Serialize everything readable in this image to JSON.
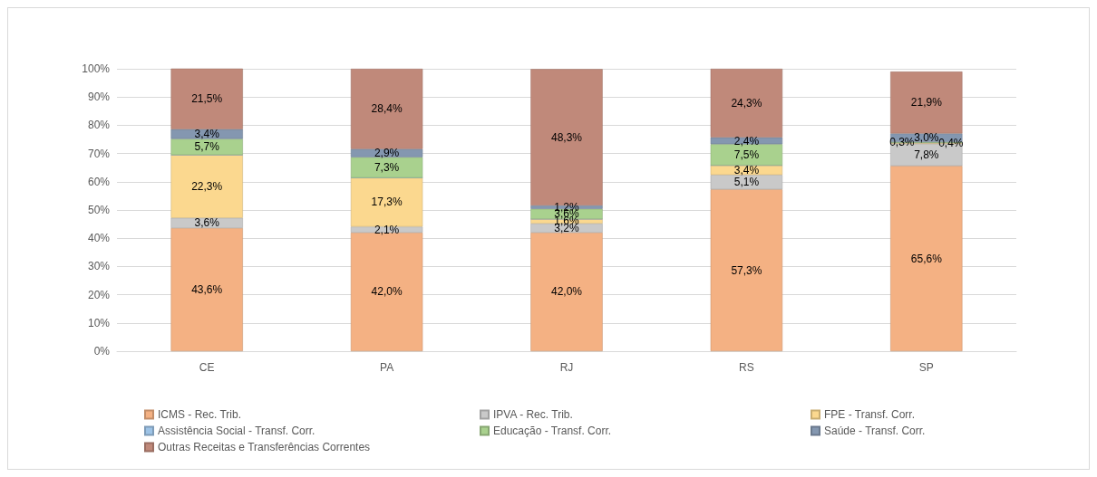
{
  "chart_data": {
    "type": "bar",
    "stacked": true,
    "categories": [
      "CE",
      "PA",
      "RJ",
      "RS",
      "SP"
    ],
    "series": [
      {
        "name": "ICMS - Rec. Trib.",
        "color": "#f4b183",
        "values": [
          43.6,
          42.0,
          42.0,
          57.3,
          65.6
        ],
        "value_labels": [
          "43,6%",
          "42,0%",
          "42,0%",
          "57,3%",
          "65,6%"
        ]
      },
      {
        "name": "IPVA - Rec. Trib.",
        "color": "#c9c9c9",
        "values": [
          3.6,
          2.1,
          3.2,
          5.1,
          7.8
        ],
        "value_labels": [
          "3,6%",
          "2,1%",
          "3,2%",
          "5,1%",
          "7,8%"
        ]
      },
      {
        "name": "FPE - Transf. Corr.",
        "color": "#fbd88f",
        "values": [
          22.3,
          17.3,
          1.6,
          3.4,
          0.4
        ],
        "value_labels": [
          "22,3%",
          "17,3%",
          "1,6%",
          "3,4%",
          "0,4%"
        ]
      },
      {
        "name": "Assistência Social - Transf. Corr.",
        "color": "#9dc3e6",
        "values": [
          0,
          0,
          0,
          0,
          0
        ],
        "value_labels": [
          null,
          null,
          null,
          null,
          null
        ]
      },
      {
        "name": "Educação - Transf. Corr.",
        "color": "#a9d18e",
        "values": [
          5.7,
          7.3,
          3.6,
          7.5,
          0.3
        ],
        "value_labels": [
          "5,7%",
          "7,3%",
          "3,6%",
          "7,5%",
          "0,3%"
        ]
      },
      {
        "name": "Saúde - Transf. Corr.",
        "color": "#8497b0",
        "values": [
          3.4,
          2.9,
          1.2,
          2.4,
          3.0
        ],
        "value_labels": [
          "3,4%",
          "2,9%",
          "1,2%",
          "2,4%",
          "3,0%"
        ]
      },
      {
        "name": "Outras Receitas e Transferências Correntes",
        "color": "#c0897a",
        "values": [
          21.5,
          28.4,
          48.3,
          24.3,
          21.9
        ],
        "value_labels": [
          "21,5%",
          "28,4%",
          "48,3%",
          "24,3%",
          "21,9%"
        ]
      }
    ],
    "ylim": [
      0,
      100
    ],
    "yticks": [
      {
        "value": 0,
        "label": "0%"
      },
      {
        "value": 10,
        "label": "10%"
      },
      {
        "value": 20,
        "label": "20%"
      },
      {
        "value": 30,
        "label": "30%"
      },
      {
        "value": 40,
        "label": "40%"
      },
      {
        "value": 50,
        "label": "50%"
      },
      {
        "value": 60,
        "label": "60%"
      },
      {
        "value": 70,
        "label": "70%"
      },
      {
        "value": 80,
        "label": "80%"
      },
      {
        "value": 90,
        "label": "90%"
      },
      {
        "value": 100,
        "label": "100%"
      }
    ],
    "grid": "y",
    "legend": "bottom"
  }
}
